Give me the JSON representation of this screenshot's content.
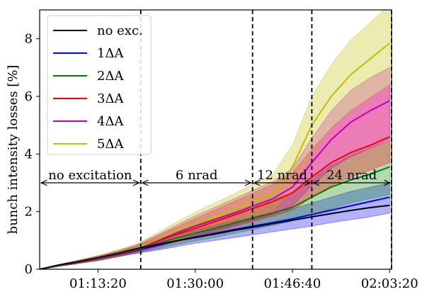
{
  "chart_data": {
    "type": "line",
    "ylabel": "bunch intensity losses [%]",
    "xlabel": "",
    "xlim": [
      3800,
      7420
    ],
    "ylim": [
      0,
      9
    ],
    "x_ticks": [
      {
        "value": 4400,
        "label": "01:13:20"
      },
      {
        "value": 5400,
        "label": "01:30:00"
      },
      {
        "value": 6400,
        "label": "01:46:40"
      },
      {
        "value": 7400,
        "label": "02:03:20"
      }
    ],
    "y_ticks": [
      {
        "value": 0,
        "label": "0"
      },
      {
        "value": 2,
        "label": "2"
      },
      {
        "value": 4,
        "label": "4"
      },
      {
        "value": 6,
        "label": "6"
      },
      {
        "value": 8,
        "label": "8"
      }
    ],
    "x": [
      3800,
      4000,
      4200,
      4400,
      4600,
      4800,
      5000,
      5200,
      5400,
      5600,
      5800,
      6000,
      6200,
      6400,
      6600,
      6800,
      7000,
      7200,
      7400
    ],
    "legend_position": "top-left",
    "series": [
      {
        "name": "no exc.",
        "color": "#000000",
        "values": [
          0.0,
          0.15,
          0.27,
          0.4,
          0.55,
          0.72,
          0.85,
          0.98,
          1.1,
          1.22,
          1.35,
          1.46,
          1.58,
          1.7,
          1.82,
          1.93,
          2.04,
          2.14,
          2.22
        ],
        "lower": [
          0.0,
          0.15,
          0.27,
          0.4,
          0.55,
          0.72,
          0.85,
          0.98,
          1.1,
          1.22,
          1.35,
          1.46,
          1.58,
          1.7,
          1.82,
          1.93,
          2.04,
          2.14,
          2.22
        ],
        "upper": [
          0.0,
          0.15,
          0.27,
          0.4,
          0.55,
          0.72,
          0.85,
          0.98,
          1.1,
          1.22,
          1.35,
          1.46,
          1.58,
          1.7,
          1.82,
          1.93,
          2.04,
          2.14,
          2.22
        ]
      },
      {
        "name": "1ΔA",
        "color": "#0000ff",
        "fill": "#0000ff",
        "values": [
          0.0,
          0.12,
          0.24,
          0.36,
          0.5,
          0.65,
          0.82,
          0.98,
          1.12,
          1.25,
          1.38,
          1.5,
          1.62,
          1.75,
          1.9,
          2.05,
          2.2,
          2.35,
          2.5
        ],
        "lower": [
          0.0,
          0.1,
          0.2,
          0.3,
          0.43,
          0.55,
          0.66,
          0.78,
          0.9,
          1.0,
          1.1,
          1.2,
          1.3,
          1.4,
          1.5,
          1.62,
          1.72,
          1.82,
          1.95
        ],
        "upper": [
          0.0,
          0.14,
          0.28,
          0.42,
          0.58,
          0.76,
          0.98,
          1.18,
          1.36,
          1.52,
          1.68,
          1.82,
          1.96,
          2.1,
          2.3,
          2.5,
          2.7,
          2.85,
          3.0
        ]
      },
      {
        "name": "2ΔA",
        "color": "#008000",
        "fill": "#008000",
        "values": [
          0.0,
          0.13,
          0.25,
          0.37,
          0.52,
          0.68,
          0.88,
          1.08,
          1.25,
          1.42,
          1.6,
          1.78,
          1.95,
          2.15,
          2.5,
          2.85,
          3.1,
          3.3,
          3.55
        ],
        "lower": [
          0.0,
          0.1,
          0.2,
          0.3,
          0.43,
          0.56,
          0.7,
          0.85,
          0.98,
          1.1,
          1.25,
          1.38,
          1.52,
          1.68,
          1.9,
          2.1,
          2.3,
          2.45,
          2.6
        ],
        "upper": [
          0.0,
          0.15,
          0.29,
          0.43,
          0.6,
          0.8,
          1.06,
          1.3,
          1.52,
          1.75,
          1.98,
          2.2,
          2.42,
          2.65,
          3.1,
          3.6,
          3.95,
          4.2,
          4.45
        ]
      },
      {
        "name": "3ΔA",
        "color": "#ff0000",
        "fill": "#ff0000",
        "values": [
          0.0,
          0.13,
          0.26,
          0.38,
          0.53,
          0.7,
          0.95,
          1.2,
          1.42,
          1.65,
          1.88,
          2.12,
          2.35,
          2.65,
          3.2,
          3.7,
          4.05,
          4.3,
          4.6
        ],
        "lower": [
          0.0,
          0.1,
          0.2,
          0.3,
          0.44,
          0.58,
          0.76,
          0.95,
          1.12,
          1.3,
          1.48,
          1.66,
          1.84,
          2.05,
          2.5,
          2.9,
          3.2,
          3.45,
          3.7
        ],
        "upper": [
          0.0,
          0.15,
          0.3,
          0.45,
          0.62,
          0.82,
          1.14,
          1.45,
          1.75,
          2.05,
          2.35,
          2.65,
          2.95,
          3.35,
          4.15,
          4.9,
          5.5,
          5.95,
          6.4
        ]
      },
      {
        "name": "4ΔA",
        "color": "#bf00bf",
        "fill": "#bf00bf",
        "values": [
          0.0,
          0.14,
          0.27,
          0.39,
          0.55,
          0.72,
          0.97,
          1.25,
          1.5,
          1.72,
          1.95,
          2.2,
          2.45,
          2.85,
          3.7,
          4.5,
          5.1,
          5.5,
          5.85
        ],
        "lower": [
          0.0,
          0.11,
          0.21,
          0.31,
          0.45,
          0.6,
          0.78,
          0.98,
          1.16,
          1.34,
          1.52,
          1.7,
          1.9,
          2.2,
          2.9,
          3.5,
          3.9,
          4.2,
          4.5
        ],
        "upper": [
          0.0,
          0.16,
          0.31,
          0.46,
          0.64,
          0.85,
          1.18,
          1.52,
          1.85,
          2.15,
          2.45,
          2.75,
          3.05,
          3.5,
          4.55,
          5.5,
          6.2,
          6.65,
          7.0
        ]
      },
      {
        "name": "5ΔA",
        "color": "#bfbf00",
        "fill": "#bfbf00",
        "values": [
          0.0,
          0.14,
          0.28,
          0.4,
          0.56,
          0.74,
          1.02,
          1.32,
          1.58,
          1.82,
          2.08,
          2.35,
          2.62,
          3.55,
          5.0,
          6.0,
          6.75,
          7.3,
          7.85
        ],
        "lower": [
          0.0,
          0.11,
          0.22,
          0.32,
          0.46,
          0.61,
          0.8,
          1.02,
          1.22,
          1.42,
          1.62,
          1.82,
          2.05,
          2.8,
          4.0,
          4.9,
          5.5,
          5.95,
          6.4
        ],
        "upper": [
          0.0,
          0.17,
          0.33,
          0.48,
          0.67,
          0.88,
          1.25,
          1.62,
          1.98,
          2.3,
          2.62,
          2.96,
          3.3,
          4.3,
          6.0,
          7.1,
          7.95,
          8.55,
          9.2
        ]
      }
    ],
    "vlines": [
      4840,
      5990,
      6600,
      7420
    ],
    "annotations": [
      {
        "label": "no excitation",
        "x_from": 3800,
        "x_to": 4840,
        "y": 3.0
      },
      {
        "label": "6 nrad",
        "x_from": 4840,
        "x_to": 5990,
        "y": 3.0
      },
      {
        "label": "12 nrad",
        "x_from": 5990,
        "x_to": 6600,
        "y": 3.0
      },
      {
        "label": "24 nrad",
        "x_from": 6600,
        "x_to": 7420,
        "y": 3.0
      }
    ]
  }
}
